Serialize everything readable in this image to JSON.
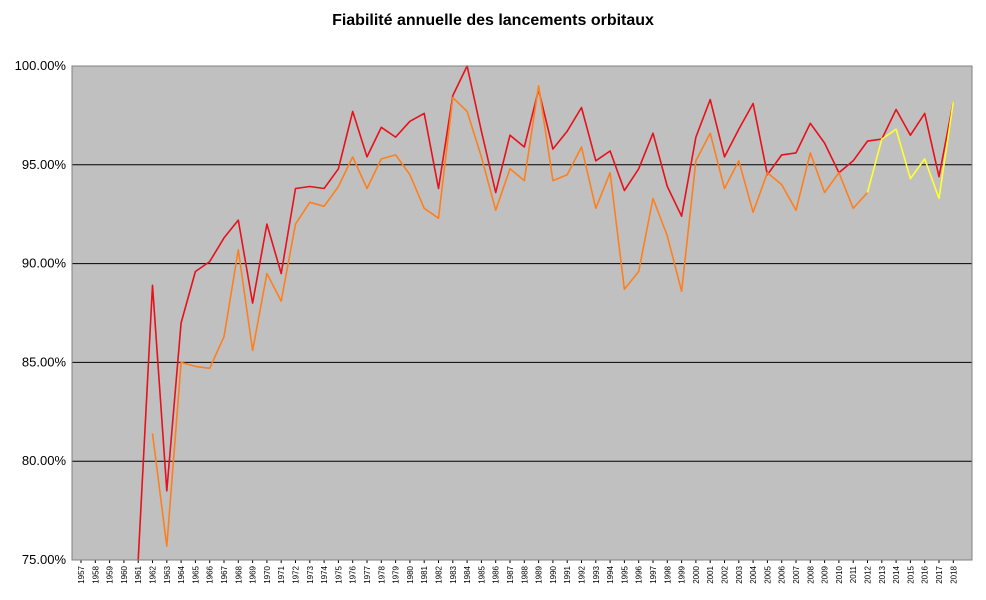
{
  "chart_data": {
    "type": "line",
    "title": "Fiabilité annuelle des lancements orbitaux",
    "xlabel": "",
    "ylabel": "",
    "ylim": [
      75,
      100
    ],
    "y_ticks": [
      "75.00%",
      "80.00%",
      "85.00%",
      "90.00%",
      "95.00%",
      "100.00%"
    ],
    "y_tick_values": [
      75,
      80,
      85,
      90,
      95,
      100
    ],
    "grid": true,
    "legend": "none",
    "categories": [
      "1957",
      "1958",
      "1959",
      "1960",
      "1961",
      "1962",
      "1963",
      "1964",
      "1965",
      "1966",
      "1967",
      "1968",
      "1969",
      "1970",
      "1971",
      "1972",
      "1973",
      "1974",
      "1975",
      "1976",
      "1977",
      "1978",
      "1979",
      "1980",
      "1981",
      "1982",
      "1983",
      "1984",
      "1985",
      "1986",
      "1987",
      "1988",
      "1989",
      "1990",
      "1991",
      "1992",
      "1993",
      "1994",
      "1995",
      "1996",
      "1997",
      "1998",
      "1999",
      "2000",
      "2001",
      "2002",
      "2003",
      "2004",
      "2005",
      "2006",
      "2007",
      "2008",
      "2009",
      "2010",
      "2011",
      "2012",
      "2013",
      "2014",
      "2015",
      "2016",
      "2017",
      "2018"
    ],
    "colors": {
      "plot_background": "#c0c0c0",
      "gridline": "#000000"
    },
    "series": [
      {
        "color": "#e8101a",
        "values": [
          null,
          null,
          null,
          null,
          74.0,
          88.9,
          78.5,
          87.0,
          89.6,
          90.1,
          91.3,
          92.2,
          88.0,
          92.0,
          89.5,
          93.8,
          93.9,
          93.8,
          94.8,
          97.7,
          95.4,
          96.9,
          96.4,
          97.2,
          97.6,
          93.8,
          98.5,
          100.0,
          96.7,
          93.6,
          96.5,
          95.9,
          98.8,
          95.8,
          96.7,
          97.9,
          95.2,
          95.7,
          93.7,
          94.8,
          96.6,
          93.9,
          92.4,
          96.4,
          98.3,
          95.4,
          96.8,
          98.1,
          94.5,
          95.5,
          95.6,
          97.1,
          96.1,
          94.6,
          95.2,
          96.2,
          96.3,
          97.8,
          96.5,
          97.6,
          94.4,
          98.2
        ]
      },
      {
        "color": "#ff7f1e",
        "values": [
          null,
          null,
          null,
          null,
          null,
          81.4,
          75.7,
          85.0,
          84.8,
          84.7,
          86.3,
          90.7,
          85.6,
          89.5,
          88.1,
          92.0,
          93.1,
          92.9,
          93.9,
          95.4,
          93.8,
          95.3,
          95.5,
          94.5,
          92.8,
          92.3,
          98.4,
          97.7,
          95.4,
          92.7,
          94.8,
          94.2,
          99.0,
          94.2,
          94.5,
          95.9,
          92.8,
          94.6,
          88.7,
          89.6,
          93.3,
          91.4,
          88.6,
          95.2,
          96.6,
          93.8,
          95.2,
          92.6,
          94.6,
          94.0,
          92.7,
          95.6,
          93.6,
          94.6,
          92.8,
          93.6,
          null,
          null,
          null,
          null,
          null,
          null
        ]
      },
      {
        "color": "#ffff33",
        "values": [
          null,
          null,
          null,
          null,
          null,
          null,
          null,
          null,
          null,
          null,
          null,
          null,
          null,
          null,
          null,
          null,
          null,
          null,
          null,
          null,
          null,
          null,
          null,
          null,
          null,
          null,
          null,
          null,
          null,
          null,
          null,
          null,
          null,
          null,
          null,
          null,
          null,
          null,
          null,
          null,
          null,
          null,
          null,
          null,
          null,
          null,
          null,
          null,
          null,
          null,
          null,
          null,
          null,
          null,
          null,
          93.6,
          96.3,
          96.8,
          94.3,
          95.3,
          93.3,
          98.2
        ]
      }
    ]
  }
}
